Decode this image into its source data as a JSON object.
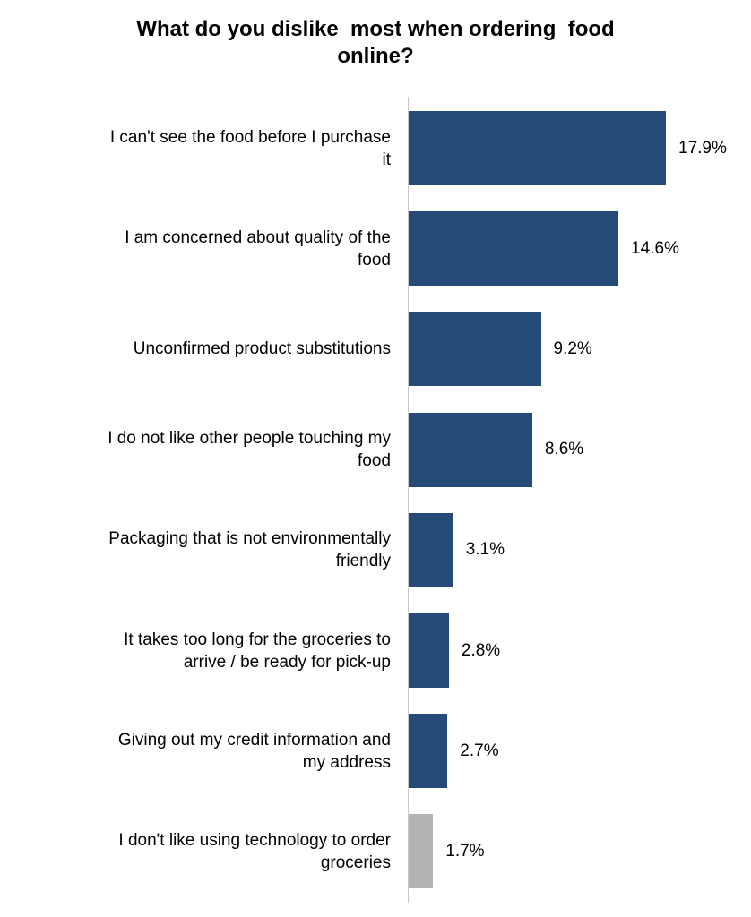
{
  "chart_data": {
    "type": "bar",
    "orientation": "horizontal",
    "title_lines": [
      "What do you dislike  most when ordering  food",
      "online?"
    ],
    "categories": [
      [
        "I can't see the food before I purchase",
        "it"
      ],
      [
        "I am concerned about quality of the",
        "food"
      ],
      [
        "Unconfirmed product substitutions"
      ],
      [
        "I do not like other people touching my",
        "food"
      ],
      [
        "Packaging that is not environmentally",
        "friendly"
      ],
      [
        "It takes too long for the groceries to",
        "arrive / be ready for pick-up"
      ],
      [
        "Giving out my credit information and",
        "my address"
      ],
      [
        "I don't like using technology to order",
        "groceries"
      ]
    ],
    "values": [
      17.9,
      14.6,
      9.2,
      8.6,
      3.1,
      2.8,
      2.7,
      1.7
    ],
    "value_labels": [
      "17.9%",
      "14.6%",
      "9.2%",
      "8.6%",
      "3.1%",
      "2.8%",
      "2.7%",
      "1.7%"
    ],
    "bar_colors": [
      "#264a78",
      "#264a78",
      "#264a78",
      "#264a78",
      "#264a78",
      "#264a78",
      "#264a78",
      "#b3b3b3"
    ],
    "xlim": [
      0,
      20
    ],
    "xlabel": "",
    "ylabel": "",
    "grid": false,
    "legend": "none"
  }
}
